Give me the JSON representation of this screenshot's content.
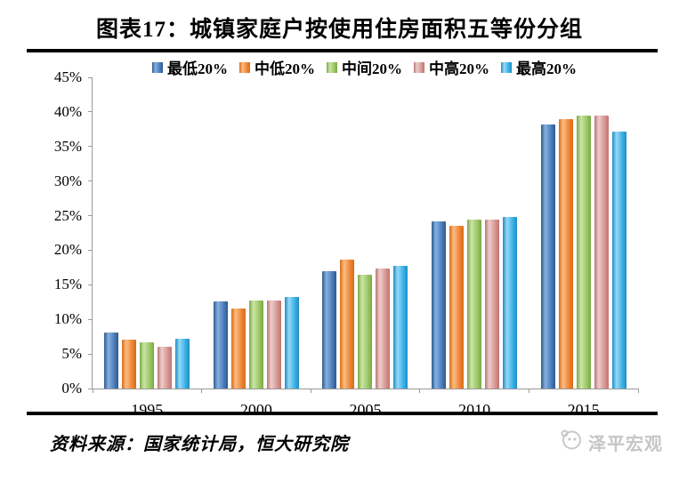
{
  "page": {
    "title": "图表17：城镇家庭户按使用住房面积五等份分组",
    "footer": {
      "source": "资料来源：国家统计局，恒大研究院",
      "logo_text": "泽平宏观"
    }
  },
  "colors": {
    "axis": "#999999",
    "rule": "#000000",
    "logo_gray": "#c6c6c6"
  },
  "chart_data": {
    "type": "bar",
    "title": "城镇家庭户按使用住房面积五等份分组",
    "categories": [
      "1995",
      "2000",
      "2005",
      "2010",
      "2015"
    ],
    "series": [
      {
        "name": "最低20%",
        "color": "#4f81bd",
        "color_light": "#85b1e3",
        "color_dark": "#31598c",
        "values": [
          8.1,
          12.6,
          17.0,
          24.2,
          38.2
        ]
      },
      {
        "name": "中低20%",
        "color": "#f0883a",
        "color_light": "#f9bd85",
        "color_dark": "#d96c14",
        "values": [
          7.1,
          11.6,
          18.7,
          23.5,
          39.0
        ]
      },
      {
        "name": "中间20%",
        "color": "#9fca6a",
        "color_light": "#cbe5a6",
        "color_dark": "#7ba845",
        "values": [
          6.7,
          12.7,
          16.4,
          24.4,
          39.5
        ]
      },
      {
        "name": "中高20%",
        "color": "#d89b99",
        "color_light": "#edcdca",
        "color_dark": "#bf7571",
        "values": [
          6.1,
          12.7,
          17.3,
          24.4,
          39.5
        ]
      },
      {
        "name": "最高20%",
        "color": "#3fb4e8",
        "color_light": "#97d9f7",
        "color_dark": "#1e8dc4",
        "values": [
          7.2,
          13.3,
          17.7,
          24.8,
          37.1
        ]
      }
    ],
    "xlabel": "",
    "ylabel": "",
    "ylim": [
      0,
      45
    ],
    "ytick_step": 5,
    "ytick_labels": [
      "45%",
      "40%",
      "35%",
      "30%",
      "25%",
      "20%",
      "15%",
      "10%",
      "5%",
      "0%"
    ],
    "legend_position": "top",
    "grid": false
  }
}
